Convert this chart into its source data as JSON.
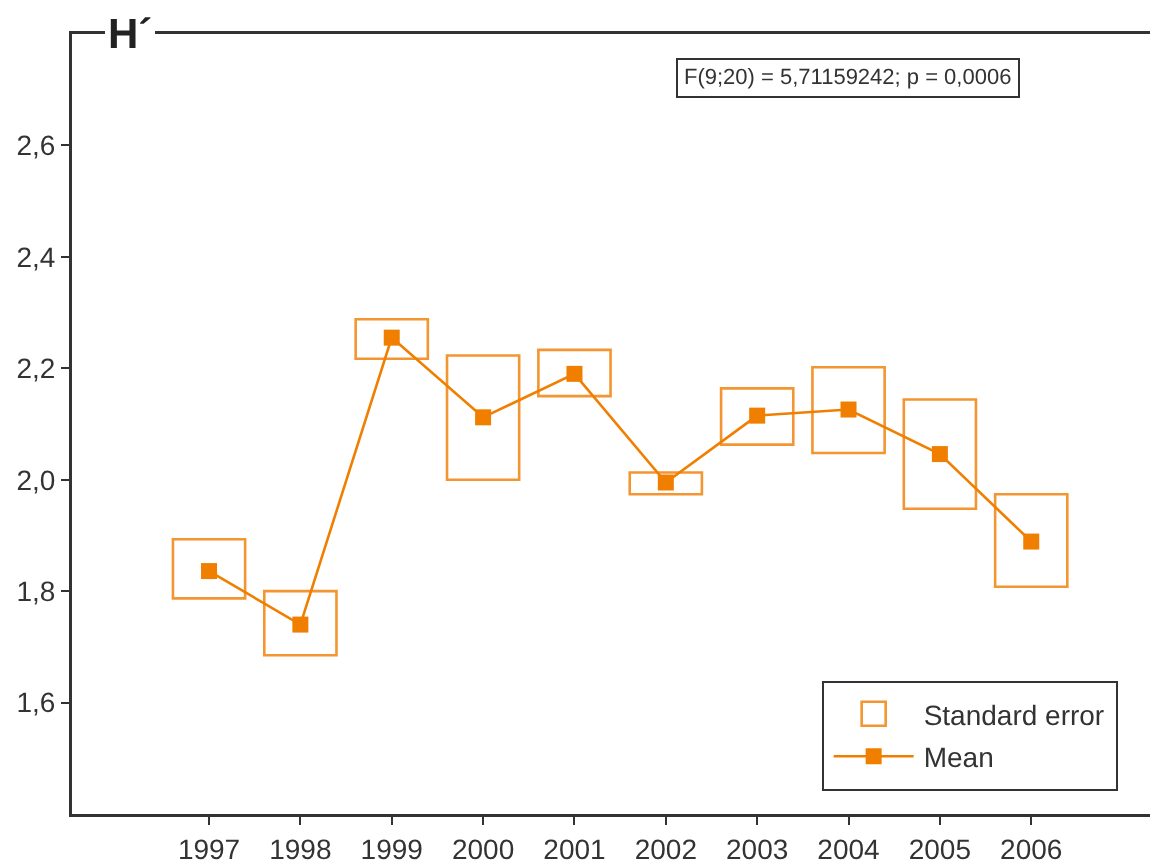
{
  "chart_data": {
    "type": "line",
    "ylabel": "H´",
    "x": [
      1997,
      1998,
      1999,
      2000,
      2001,
      2002,
      2003,
      2004,
      2005,
      2006
    ],
    "series": [
      {
        "name": "Standard error",
        "type": "bar",
        "color": "#f39530",
        "base": [
          1.787,
          1.685,
          2.217,
          2.0,
          2.15,
          1.974,
          2.063,
          2.048,
          1.948,
          1.808
        ],
        "values": [
          0.106,
          0.115,
          0.071,
          0.223,
          0.083,
          0.039,
          0.101,
          0.154,
          0.196,
          0.166
        ]
      },
      {
        "name": "Mean",
        "color": "#f07f00",
        "values": [
          1.836,
          1.74,
          2.255,
          2.112,
          2.19,
          1.995,
          2.115,
          2.126,
          2.046,
          1.889
        ]
      }
    ],
    "xlim": [
      1995.5,
      2007.3
    ],
    "xticks": [
      1997,
      1998,
      1999,
      2000,
      2001,
      2002,
      2003,
      2004,
      2005,
      2006
    ],
    "ylim": [
      1.4,
      2.8
    ],
    "yticks": [
      {
        "value": 1.6,
        "label": "1,6"
      },
      {
        "value": 1.8,
        "label": "1,8"
      },
      {
        "value": 2.0,
        "label": "2,0"
      },
      {
        "value": 2.2,
        "label": "2,2"
      },
      {
        "value": 2.4,
        "label": "2,4"
      },
      {
        "value": 2.6,
        "label": "2,6"
      }
    ],
    "annotations": [
      "F(9;20) = 5,71159242; p = 0,0006"
    ],
    "legend": "bottom right",
    "marker": "square",
    "line_style": "solid"
  }
}
